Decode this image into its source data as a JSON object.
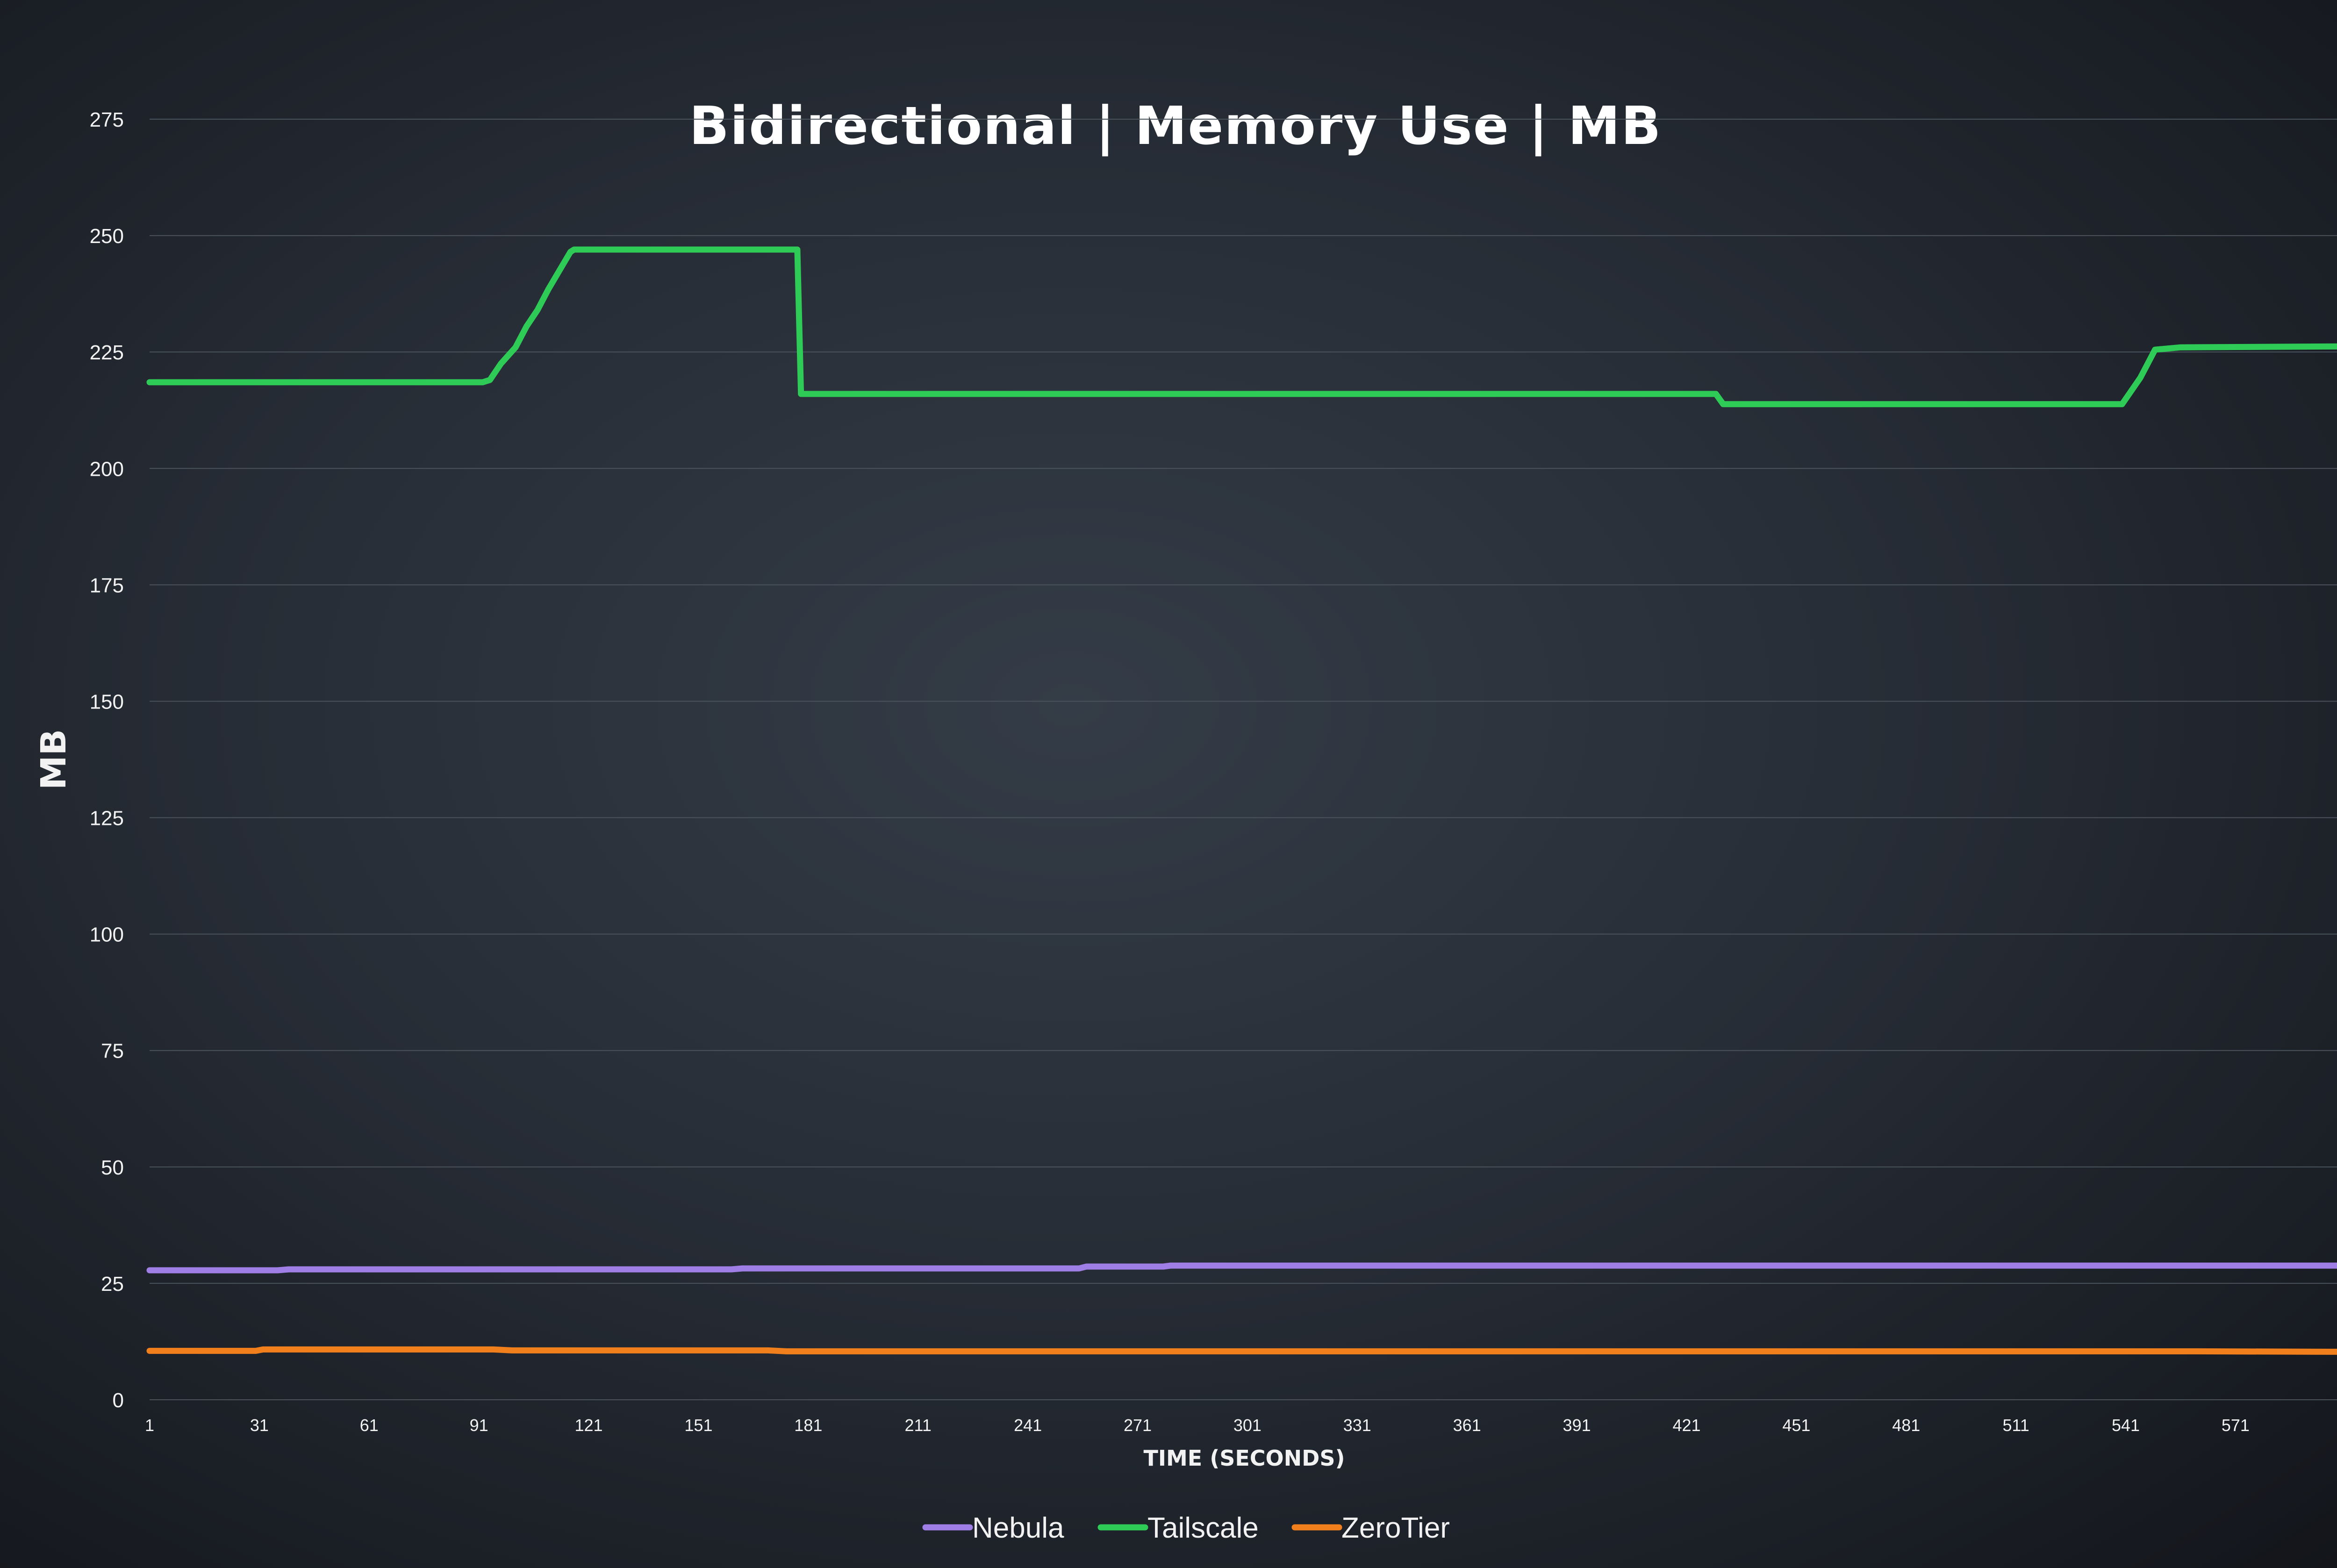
{
  "chart_data": {
    "type": "line",
    "title": "Bidirectional | Memory Use | MB",
    "xlabel": "TIME (SECONDS)",
    "ylabel": "MB",
    "xlim": [
      1,
      600
    ],
    "ylim": [
      0,
      275
    ],
    "yticks": [
      0,
      25,
      50,
      75,
      100,
      125,
      150,
      175,
      200,
      225,
      250,
      275
    ],
    "xticks": [
      1,
      31,
      61,
      91,
      121,
      151,
      181,
      211,
      241,
      271,
      301,
      331,
      361,
      391,
      421,
      451,
      481,
      511,
      541,
      571
    ],
    "grid": true,
    "legend": "bottom",
    "background": "#2b323b",
    "series": [
      {
        "name": "Nebula",
        "color": "#9f7fe6",
        "points": [
          [
            1,
            27.8
          ],
          [
            36,
            27.8
          ],
          [
            39,
            28.0
          ],
          [
            160,
            28.0
          ],
          [
            163,
            28.2
          ],
          [
            255,
            28.2
          ],
          [
            257,
            28.6
          ],
          [
            278,
            28.6
          ],
          [
            280,
            28.8
          ],
          [
            600,
            28.8
          ]
        ]
      },
      {
        "name": "Tailscale",
        "color": "#2ecc57",
        "points": [
          [
            1,
            218.5
          ],
          [
            92,
            218.5
          ],
          [
            94,
            219.0
          ],
          [
            97,
            222.5
          ],
          [
            101,
            226.0
          ],
          [
            104,
            230.5
          ],
          [
            107,
            234.0
          ],
          [
            110,
            238.5
          ],
          [
            113,
            242.5
          ],
          [
            116,
            246.5
          ],
          [
            117,
            247.0
          ],
          [
            178,
            247.0
          ],
          [
            179,
            216.0
          ],
          [
            429,
            216.0
          ],
          [
            431,
            213.8
          ],
          [
            540,
            213.8
          ],
          [
            545,
            219.5
          ],
          [
            549,
            225.5
          ],
          [
            556,
            226.0
          ],
          [
            600,
            226.2
          ]
        ]
      },
      {
        "name": "ZeroTier",
        "color": "#f17f1c",
        "points": [
          [
            1,
            10.5
          ],
          [
            30,
            10.5
          ],
          [
            32,
            10.8
          ],
          [
            95,
            10.8
          ],
          [
            100,
            10.6
          ],
          [
            170,
            10.6
          ],
          [
            175,
            10.4
          ],
          [
            560,
            10.4
          ],
          [
            600,
            10.3
          ]
        ]
      }
    ]
  }
}
